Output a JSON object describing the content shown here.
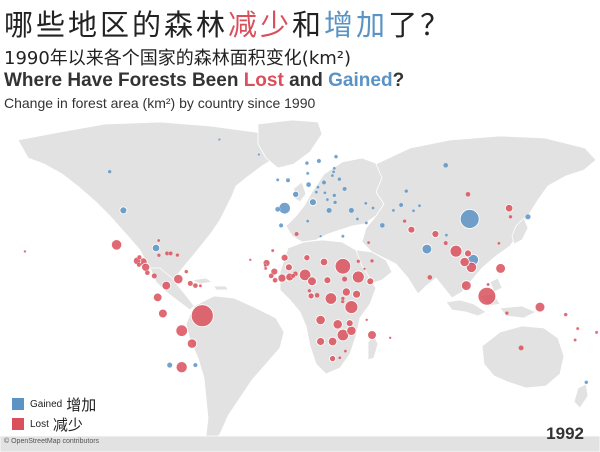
{
  "title_zh": {
    "part1": "哪些地区的森林",
    "lost": "减少",
    "part2": "和",
    "gained": "增加",
    "part3": "了？"
  },
  "subtitle_zh": "1990年以来各个国家的森林面积变化(km²)",
  "title_en": {
    "part1": "Where Have Forests Been ",
    "lost": "Lost",
    "part2": " and ",
    "gained": "Gained",
    "part3": "?"
  },
  "subtitle_en": "Change in forest area (km²) by country since 1990",
  "legend": {
    "gained": {
      "en": "Gained",
      "zh": "增加",
      "color": "#5a93c4"
    },
    "lost": {
      "en": "Lost",
      "zh": "减少",
      "color": "#d9505c"
    }
  },
  "attribution": "© OpenStreetMap contributors",
  "year": "1992",
  "colors": {
    "land": "#e2e2e2",
    "border": "#ffffff",
    "lost": "#d9505c",
    "gained": "#5a93c4"
  },
  "points": [
    {
      "name": "Brazil",
      "lon": -52,
      "lat": -10,
      "change": "lost",
      "magnitude": 1.0
    },
    {
      "name": "China",
      "lon": 104,
      "lat": 35,
      "change": "gained",
      "magnitude": 0.75
    },
    {
      "name": "Indonesia",
      "lon": 114,
      "lat": -1,
      "change": "lost",
      "magnitude": 0.65
    },
    {
      "name": "Sudan",
      "lon": 30,
      "lat": 13,
      "change": "lost",
      "magnitude": 0.5
    },
    {
      "name": "Tanzania",
      "lon": 35,
      "lat": -6,
      "change": "lost",
      "magnitude": 0.35
    },
    {
      "name": "Ethiopia",
      "lon": 39,
      "lat": 8,
      "change": "lost",
      "magnitude": 0.3
    },
    {
      "name": "Myanmar",
      "lon": 96,
      "lat": 20,
      "change": "lost",
      "magnitude": 0.3
    },
    {
      "name": "Nigeria",
      "lon": 8,
      "lat": 9,
      "change": "lost",
      "magnitude": 0.28
    },
    {
      "name": "DR Congo",
      "lon": 23,
      "lat": -2,
      "change": "lost",
      "magnitude": 0.28
    },
    {
      "name": "Zimbabwe",
      "lon": 30,
      "lat": -19,
      "change": "lost",
      "magnitude": 0.28
    },
    {
      "name": "Bolivia",
      "lon": -64,
      "lat": -17,
      "change": "lost",
      "magnitude": 0.28
    },
    {
      "name": "Argentina",
      "lon": -64,
      "lat": -34,
      "change": "lost",
      "magnitude": 0.26
    },
    {
      "name": "Spain",
      "lon": -4,
      "lat": 40,
      "change": "gained",
      "magnitude": 0.28
    },
    {
      "name": "Vietnam",
      "lon": 106,
      "lat": 16,
      "change": "gained",
      "magnitude": 0.25
    },
    {
      "name": "India",
      "lon": 79,
      "lat": 21,
      "change": "gained",
      "magnitude": 0.2
    },
    {
      "name": "Mexico",
      "lon": -102,
      "lat": 23,
      "change": "lost",
      "magnitude": 0.22
    },
    {
      "name": "Philippines",
      "lon": 122,
      "lat": 12,
      "change": "lost",
      "magnitude": 0.2
    },
    {
      "name": "Cambodia",
      "lon": 105,
      "lat": 12.5,
      "change": "lost",
      "magnitude": 0.22
    },
    {
      "name": "Thailand",
      "lon": 101,
      "lat": 15,
      "change": "lost",
      "magnitude": 0.18
    },
    {
      "name": "Malaysia",
      "lon": 102,
      "lat": 4,
      "change": "lost",
      "magnitude": 0.2
    },
    {
      "name": "Papua New Guinea",
      "lon": 145,
      "lat": -6,
      "change": "lost",
      "magnitude": 0.2
    },
    {
      "name": "Peru",
      "lon": -75,
      "lat": -9,
      "change": "lost",
      "magnitude": 0.16
    },
    {
      "name": "Colombia",
      "lon": -73,
      "lat": 4,
      "change": "lost",
      "magnitude": 0.16
    },
    {
      "name": "Venezuela",
      "lon": -66,
      "lat": 7,
      "change": "lost",
      "magnitude": 0.18
    },
    {
      "name": "Paraguay",
      "lon": -58,
      "lat": -23,
      "change": "lost",
      "magnitude": 0.18
    },
    {
      "name": "Ecuador",
      "lon": -78,
      "lat": -1.5,
      "change": "lost",
      "magnitude": 0.15
    },
    {
      "name": "Honduras",
      "lon": -86.5,
      "lat": 15,
      "change": "lost",
      "magnitude": 0.14
    },
    {
      "name": "Nicaragua",
      "lon": -85,
      "lat": 12.5,
      "change": "lost",
      "magnitude": 0.14
    },
    {
      "name": "Guatemala",
      "lon": -90,
      "lat": 15.5,
      "change": "lost",
      "magnitude": 0.12
    },
    {
      "name": "Cuba",
      "lon": -79,
      "lat": 21.5,
      "change": "gained",
      "magnitude": 0.12
    },
    {
      "name": "Angola",
      "lon": 17,
      "lat": -12,
      "change": "lost",
      "magnitude": 0.18
    },
    {
      "name": "Zambia",
      "lon": 27,
      "lat": -14,
      "change": "lost",
      "magnitude": 0.18
    },
    {
      "name": "Mozambique",
      "lon": 35,
      "lat": -17,
      "change": "lost",
      "magnitude": 0.18
    },
    {
      "name": "Cameroon",
      "lon": 12,
      "lat": 6,
      "change": "lost",
      "magnitude": 0.16
    },
    {
      "name": "Cote d'Ivoire",
      "lon": -5.5,
      "lat": 7.5,
      "change": "lost",
      "magnitude": 0.14
    },
    {
      "name": "Ghana",
      "lon": -1,
      "lat": 8,
      "change": "lost",
      "magnitude": 0.13
    },
    {
      "name": "Uganda",
      "lon": 32,
      "lat": 1,
      "change": "lost",
      "magnitude": 0.14
    },
    {
      "name": "Kenya",
      "lon": 38,
      "lat": 0,
      "change": "lost",
      "magnitude": 0.13
    },
    {
      "name": "Madagascar",
      "lon": 47,
      "lat": -19,
      "change": "lost",
      "magnitude": 0.16
    },
    {
      "name": "Botswana",
      "lon": 24,
      "lat": -22,
      "change": "lost",
      "magnitude": 0.15
    },
    {
      "name": "Namibia",
      "lon": 17,
      "lat": -22,
      "change": "lost",
      "magnitude": 0.13
    },
    {
      "name": "Chad",
      "lon": 19,
      "lat": 15,
      "change": "lost",
      "magnitude": 0.12
    },
    {
      "name": "Mali",
      "lon": -4,
      "lat": 17,
      "change": "lost",
      "magnitude": 0.1
    },
    {
      "name": "Senegal",
      "lon": -14.5,
      "lat": 14.5,
      "change": "lost",
      "magnitude": 0.1
    },
    {
      "name": "Guinea",
      "lon": -10,
      "lat": 10.5,
      "change": "lost",
      "magnitude": 0.1
    },
    {
      "name": "Burkina Faso",
      "lon": -1.5,
      "lat": 12.5,
      "change": "lost",
      "magnitude": 0.1
    },
    {
      "name": "Niger",
      "lon": 9,
      "lat": 17,
      "change": "lost",
      "magnitude": 0.08
    },
    {
      "name": "Central African Republic",
      "lon": 21,
      "lat": 6.5,
      "change": "lost",
      "magnitude": 0.1
    },
    {
      "name": "Gabon",
      "lon": 11.5,
      "lat": -0.8,
      "change": "lost",
      "magnitude": 0.08
    },
    {
      "name": "Malawi",
      "lon": 34,
      "lat": -13.5,
      "change": "lost",
      "magnitude": 0.1
    },
    {
      "name": "Somalia",
      "lon": 46,
      "lat": 6,
      "change": "lost",
      "magnitude": 0.1
    },
    {
      "name": "South Africa",
      "lon": 24,
      "lat": -30,
      "change": "lost",
      "magnitude": 0.08
    },
    {
      "name": "Nepal",
      "lon": 84,
      "lat": 28,
      "change": "lost",
      "magnitude": 0.1
    },
    {
      "name": "Pakistan",
      "lon": 70,
      "lat": 30,
      "change": "lost",
      "magnitude": 0.1
    },
    {
      "name": "North Korea",
      "lon": 127,
      "lat": 40,
      "change": "lost",
      "magnitude": 0.12
    },
    {
      "name": "Laos",
      "lon": 103,
      "lat": 19,
      "change": "lost",
      "magnitude": 0.1
    },
    {
      "name": "Japan",
      "lon": 138,
      "lat": 36,
      "change": "gained",
      "magnitude": 0.06
    },
    {
      "name": "Australia",
      "lon": 134,
      "lat": -25,
      "change": "lost",
      "magnitude": 0.06
    },
    {
      "name": "Russia",
      "lon": 90,
      "lat": 60,
      "change": "gained",
      "magnitude": 0.05
    },
    {
      "name": "USA",
      "lon": -98,
      "lat": 39,
      "change": "gained",
      "magnitude": 0.1
    },
    {
      "name": "Canada",
      "lon": -106,
      "lat": 57,
      "change": "gained",
      "magnitude": 0.03
    },
    {
      "name": "France",
      "lon": 2.5,
      "lat": 46.5,
      "change": "gained",
      "magnitude": 0.08
    },
    {
      "name": "Italy",
      "lon": 12.5,
      "lat": 42.8,
      "change": "gained",
      "magnitude": 0.1
    },
    {
      "name": "Greece",
      "lon": 22,
      "lat": 39,
      "change": "gained",
      "magnitude": 0.06
    },
    {
      "name": "Turkey",
      "lon": 35,
      "lat": 39,
      "change": "gained",
      "magnitude": 0.06
    },
    {
      "name": "Iran",
      "lon": 53,
      "lat": 32,
      "change": "gained",
      "magnitude": 0.05
    },
    {
      "name": "Germany",
      "lon": 10,
      "lat": 51,
      "change": "gained",
      "magnitude": 0.05
    },
    {
      "name": "United Kingdom",
      "lon": -2,
      "lat": 53,
      "change": "gained",
      "magnitude": 0.04
    },
    {
      "name": "Sweden",
      "lon": 16,
      "lat": 62,
      "change": "gained",
      "magnitude": 0.04
    },
    {
      "name": "Finland",
      "lon": 26,
      "lat": 64,
      "change": "gained",
      "magnitude": 0.03
    },
    {
      "name": "Norway",
      "lon": 9,
      "lat": 61,
      "change": "gained",
      "magnitude": 0.03
    },
    {
      "name": "Poland",
      "lon": 19,
      "lat": 52,
      "change": "gained",
      "magnitude": 0.04
    },
    {
      "name": "Ukraine",
      "lon": 31,
      "lat": 49,
      "change": "gained",
      "magnitude": 0.04
    },
    {
      "name": "Belarus",
      "lon": 28,
      "lat": 53.5,
      "change": "gained",
      "magnitude": 0.03
    },
    {
      "name": "Kazakhstan",
      "lon": 67,
      "lat": 48,
      "change": "gained",
      "magnitude": 0.03
    },
    {
      "name": "Uzbekistan",
      "lon": 64,
      "lat": 41.5,
      "change": "gained",
      "magnitude": 0.04
    },
    {
      "name": "Mongolia",
      "lon": 103,
      "lat": 46.5,
      "change": "lost",
      "magnitude": 0.05
    },
    {
      "name": "Sri Lanka",
      "lon": 80.7,
      "lat": 7.8,
      "change": "lost",
      "magnitude": 0.05
    },
    {
      "name": "Bangladesh",
      "lon": 90,
      "lat": 23.8,
      "change": "lost",
      "magnitude": 0.04
    },
    {
      "name": "Portugal",
      "lon": -8,
      "lat": 39.5,
      "change": "gained",
      "magnitude": 0.05
    },
    {
      "name": "Morocco",
      "lon": -6,
      "lat": 32,
      "change": "gained",
      "magnitude": 0.04
    },
    {
      "name": "Algeria",
      "lon": 3,
      "lat": 28,
      "change": "lost",
      "magnitude": 0.04
    },
    {
      "name": "Egypt",
      "lon": 30,
      "lat": 27,
      "change": "gained",
      "magnitude": 0.02
    },
    {
      "name": "Saudi Arabia",
      "lon": 45,
      "lat": 24,
      "change": "lost",
      "magnitude": 0.02
    },
    {
      "name": "Yemen",
      "lon": 47,
      "lat": 15.5,
      "change": "lost",
      "magnitude": 0.03
    },
    {
      "name": "Afghanistan",
      "lon": 66,
      "lat": 34,
      "change": "lost",
      "magnitude": 0.03
    },
    {
      "name": "Chile",
      "lon": -71,
      "lat": -33,
      "change": "gained",
      "magnitude": 0.06
    },
    {
      "name": "Uruguay",
      "lon": -56,
      "lat": -33,
      "change": "gained",
      "magnitude": 0.04
    },
    {
      "name": "Guyana",
      "lon": -59,
      "lat": 5,
      "change": "lost",
      "magnitude": 0.06
    },
    {
      "name": "Suriname",
      "lon": -56,
      "lat": 4,
      "change": "lost",
      "magnitude": 0.05
    },
    {
      "name": "Panama",
      "lon": -80,
      "lat": 8.5,
      "change": "lost",
      "magnitude": 0.06
    },
    {
      "name": "Costa Rica",
      "lon": -84,
      "lat": 10,
      "change": "lost",
      "magnitude": 0.05
    },
    {
      "name": "El Salvador",
      "lon": -89,
      "lat": 13.7,
      "change": "lost",
      "magnitude": 0.04
    },
    {
      "name": "Belize",
      "lon": -88.7,
      "lat": 17.2,
      "change": "lost",
      "magnitude": 0.04
    },
    {
      "name": "Haiti",
      "lon": -72.5,
      "lat": 19,
      "change": "lost",
      "magnitude": 0.04
    },
    {
      "name": "Dominican Republic",
      "lon": -70.5,
      "lat": 19,
      "change": "lost",
      "magnitude": 0.04
    },
    {
      "name": "Jamaica",
      "lon": -77.3,
      "lat": 18.1,
      "change": "lost",
      "magnitude": 0.03
    },
    {
      "name": "Puerto Rico",
      "lon": -66.5,
      "lat": 18.2,
      "change": "lost",
      "magnitude": 0.03
    },
    {
      "name": "Trinidad and Tobago",
      "lon": -61.3,
      "lat": 10.5,
      "change": "lost",
      "magnitude": 0.03
    },
    {
      "name": "Sierra Leone",
      "lon": -11.8,
      "lat": 8.5,
      "change": "lost",
      "magnitude": 0.05
    },
    {
      "name": "Liberia",
      "lon": -9.5,
      "lat": 6.5,
      "change": "lost",
      "magnitude": 0.05
    },
    {
      "name": "Togo",
      "lon": 1,
      "lat": 8.5,
      "change": "lost",
      "magnitude": 0.04
    },
    {
      "name": "Benin",
      "lon": 2.3,
      "lat": 9.5,
      "change": "lost",
      "magnitude": 0.05
    },
    {
      "name": "South Sudan",
      "lon": 31,
      "lat": 7,
      "change": "lost",
      "magnitude": 0.06
    },
    {
      "name": "Eritrea",
      "lon": 39,
      "lat": 15.3,
      "change": "lost",
      "magnitude": 0.03
    },
    {
      "name": "Burundi",
      "lon": 29.9,
      "lat": -3.4,
      "change": "lost",
      "magnitude": 0.03
    },
    {
      "name": "Rwanda",
      "lon": 30,
      "lat": -2,
      "change": "lost",
      "magnitude": 0.03
    },
    {
      "name": "Congo",
      "lon": 15,
      "lat": -0.5,
      "change": "lost",
      "magnitude": 0.05
    },
    {
      "name": "Equatorial Guinea",
      "lon": 10.5,
      "lat": 1.6,
      "change": "lost",
      "magnitude": 0.03
    },
    {
      "name": "Lesotho",
      "lon": 28.2,
      "lat": -29.6,
      "change": "lost",
      "magnitude": 0.02
    },
    {
      "name": "Swaziland",
      "lon": 31.5,
      "lat": -26.5,
      "change": "lost",
      "magnitude": 0.02
    },
    {
      "name": "Timor-Leste",
      "lon": 125.7,
      "lat": -8.8,
      "change": "lost",
      "magnitude": 0.03
    },
    {
      "name": "Solomon Islands",
      "lon": 160,
      "lat": -9.5,
      "change": "lost",
      "magnitude": 0.03
    },
    {
      "name": "Vanuatu",
      "lon": 167,
      "lat": -16,
      "change": "lost",
      "magnitude": 0.02
    },
    {
      "name": "Fiji",
      "lon": 178,
      "lat": -17.8,
      "change": "lost",
      "magnitude": 0.02
    },
    {
      "name": "New Caledonia",
      "lon": 165.5,
      "lat": -21.3,
      "change": "lost",
      "magnitude": 0.02
    },
    {
      "name": "Brunei",
      "lon": 114.7,
      "lat": 4.5,
      "change": "lost",
      "magnitude": 0.02
    },
    {
      "name": "Taiwan",
      "lon": 121,
      "lat": 23.7,
      "change": "lost",
      "magnitude": 0.02
    },
    {
      "name": "South Korea",
      "lon": 127.8,
      "lat": 36,
      "change": "lost",
      "magnitude": 0.03
    },
    {
      "name": "Bhutan",
      "lon": 90.4,
      "lat": 27.5,
      "change": "gained",
      "magnitude": 0.02
    },
    {
      "name": "Syria",
      "lon": 38.5,
      "lat": 35,
      "change": "gained",
      "magnitude": 0.02
    },
    {
      "name": "Iraq",
      "lon": 43.7,
      "lat": 33.2,
      "change": "gained",
      "magnitude": 0.02
    },
    {
      "name": "Tunisia",
      "lon": 9.5,
      "lat": 34,
      "change": "gained",
      "magnitude": 0.02
    },
    {
      "name": "Libya",
      "lon": 17,
      "lat": 27,
      "change": "gained",
      "magnitude": 0.01
    },
    {
      "name": "Romania",
      "lon": 25,
      "lat": 46,
      "change": "gained",
      "magnitude": 0.03
    },
    {
      "name": "Bulgaria",
      "lon": 25.5,
      "lat": 42.7,
      "change": "gained",
      "magnitude": 0.03
    },
    {
      "name": "Serbia",
      "lon": 21,
      "lat": 44,
      "change": "gained",
      "magnitude": 0.02
    },
    {
      "name": "Hungary",
      "lon": 19.5,
      "lat": 47.2,
      "change": "gained",
      "magnitude": 0.02
    },
    {
      "name": "Austria",
      "lon": 14.5,
      "lat": 47.5,
      "change": "gained",
      "magnitude": 0.02
    },
    {
      "name": "Czech Republic",
      "lon": 15.5,
      "lat": 49.8,
      "change": "gained",
      "magnitude": 0.02
    },
    {
      "name": "Latvia",
      "lon": 24.6,
      "lat": 56.9,
      "change": "gained",
      "magnitude": 0.02
    },
    {
      "name": "Lithuania",
      "lon": 23.9,
      "lat": 55.2,
      "change": "gained",
      "magnitude": 0.02
    },
    {
      "name": "Estonia",
      "lon": 25,
      "lat": 58.6,
      "change": "gained",
      "magnitude": 0.02
    },
    {
      "name": "Denmark",
      "lon": 9.5,
      "lat": 56.2,
      "change": "gained",
      "magnitude": 0.02
    },
    {
      "name": "Ireland",
      "lon": -8,
      "lat": 53.2,
      "change": "gained",
      "magnitude": 0.02
    },
    {
      "name": "Georgia",
      "lon": 43.4,
      "lat": 42.3,
      "change": "gained",
      "magnitude": 0.02
    },
    {
      "name": "Azerbaijan",
      "lon": 47.6,
      "lat": 40.1,
      "change": "gained",
      "magnitude": 0.02
    },
    {
      "name": "Turkmenistan",
      "lon": 59.5,
      "lat": 39,
      "change": "gained",
      "magnitude": 0.02
    },
    {
      "name": "Kyrgyzstan",
      "lon": 74.7,
      "lat": 41.2,
      "change": "gained",
      "magnitude": 0.02
    },
    {
      "name": "Tajikistan",
      "lon": 71.2,
      "lat": 38.8,
      "change": "gained",
      "magnitude": 0.02
    },
    {
      "name": "New Zealand",
      "lon": 172,
      "lat": -41,
      "change": "gained",
      "magnitude": 0.03
    },
    {
      "name": "Mauritania",
      "lon": -10.9,
      "lat": 20.3,
      "change": "lost",
      "magnitude": 0.02
    },
    {
      "name": "Gambia",
      "lon": -15.3,
      "lat": 13.4,
      "change": "lost",
      "magnitude": 0.02
    },
    {
      "name": "Guinea-Bissau",
      "lon": -15,
      "lat": 12,
      "change": "lost",
      "magnitude": 0.02
    },
    {
      "name": "Djibouti",
      "lon": 42.6,
      "lat": 11.8,
      "change": "lost",
      "magnitude": 0.01
    },
    {
      "name": "Comoros",
      "lon": 43.9,
      "lat": -11.9,
      "change": "lost",
      "magnitude": 0.01
    },
    {
      "name": "Mauritius",
      "lon": 57.6,
      "lat": -20.3,
      "change": "lost",
      "magnitude": 0.01
    },
    {
      "name": "French Guiana",
      "lon": -53.1,
      "lat": 3.9,
      "change": "lost",
      "magnitude": 0.02
    },
    {
      "name": "Bahamas",
      "lon": -77.4,
      "lat": 25,
      "change": "lost",
      "magnitude": 0.02
    },
    {
      "name": "Samoa",
      "lon": -172,
      "lat": -13.8,
      "change": "lost",
      "magnitude": 0.01
    },
    {
      "name": "Hawaii",
      "lon": -155.5,
      "lat": 19.9,
      "change": "lost",
      "magnitude": 0.01
    },
    {
      "name": "Cape Verde",
      "lon": -24,
      "lat": 16,
      "change": "lost",
      "magnitude": 0.01
    },
    {
      "name": "Greenland",
      "lon": -42,
      "lat": 72,
      "change": "gained",
      "magnitude": 0.005
    },
    {
      "name": "Iceland",
      "lon": -19,
      "lat": 65,
      "change": "gained",
      "magnitude": 0.01
    }
  ]
}
